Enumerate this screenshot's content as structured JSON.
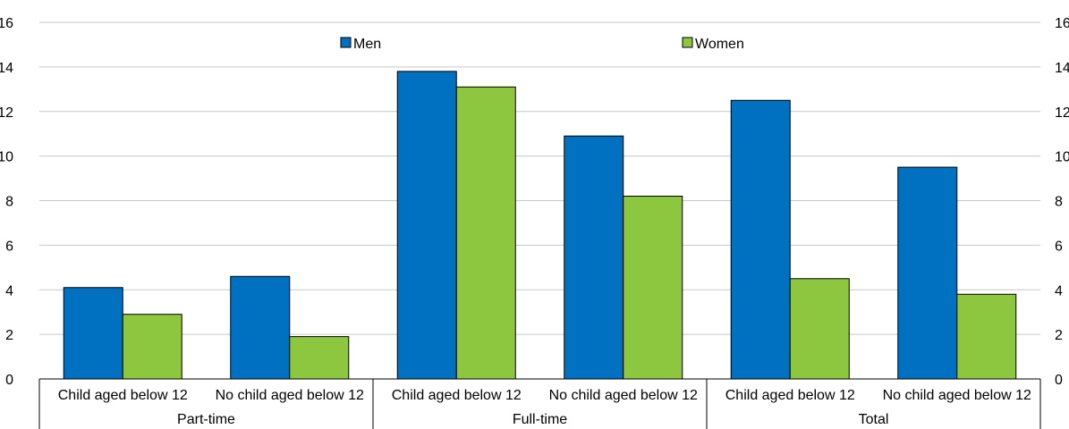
{
  "chart_data": {
    "type": "bar",
    "groups": [
      {
        "label": "Part-time",
        "categories": [
          "Child aged below 12",
          "No child aged below 12"
        ]
      },
      {
        "label": "Full-time",
        "categories": [
          "Child aged below 12",
          "No child aged below 12"
        ]
      },
      {
        "label": "Total",
        "categories": [
          "Child aged below 12",
          "No child aged below 12"
        ]
      }
    ],
    "categories": [
      "Child aged below 12",
      "No child aged below 12",
      "Child aged below 12",
      "No child aged below 12",
      "Child aged below 12",
      "No child aged below 12"
    ],
    "series": [
      {
        "name": "Men",
        "color": "#0070C0",
        "values": [
          4.1,
          4.6,
          13.8,
          10.9,
          12.5,
          9.5
        ]
      },
      {
        "name": "Women",
        "color": "#8DC63F",
        "values": [
          2.9,
          1.9,
          13.1,
          8.2,
          4.5,
          3.8
        ]
      }
    ],
    "ylim": [
      0,
      16
    ],
    "yticks": [
      "0",
      "2",
      "4",
      "6",
      "8",
      "10",
      "12",
      "14",
      "16"
    ],
    "secondary_axis": true,
    "grid": true,
    "legend": "top-center"
  }
}
